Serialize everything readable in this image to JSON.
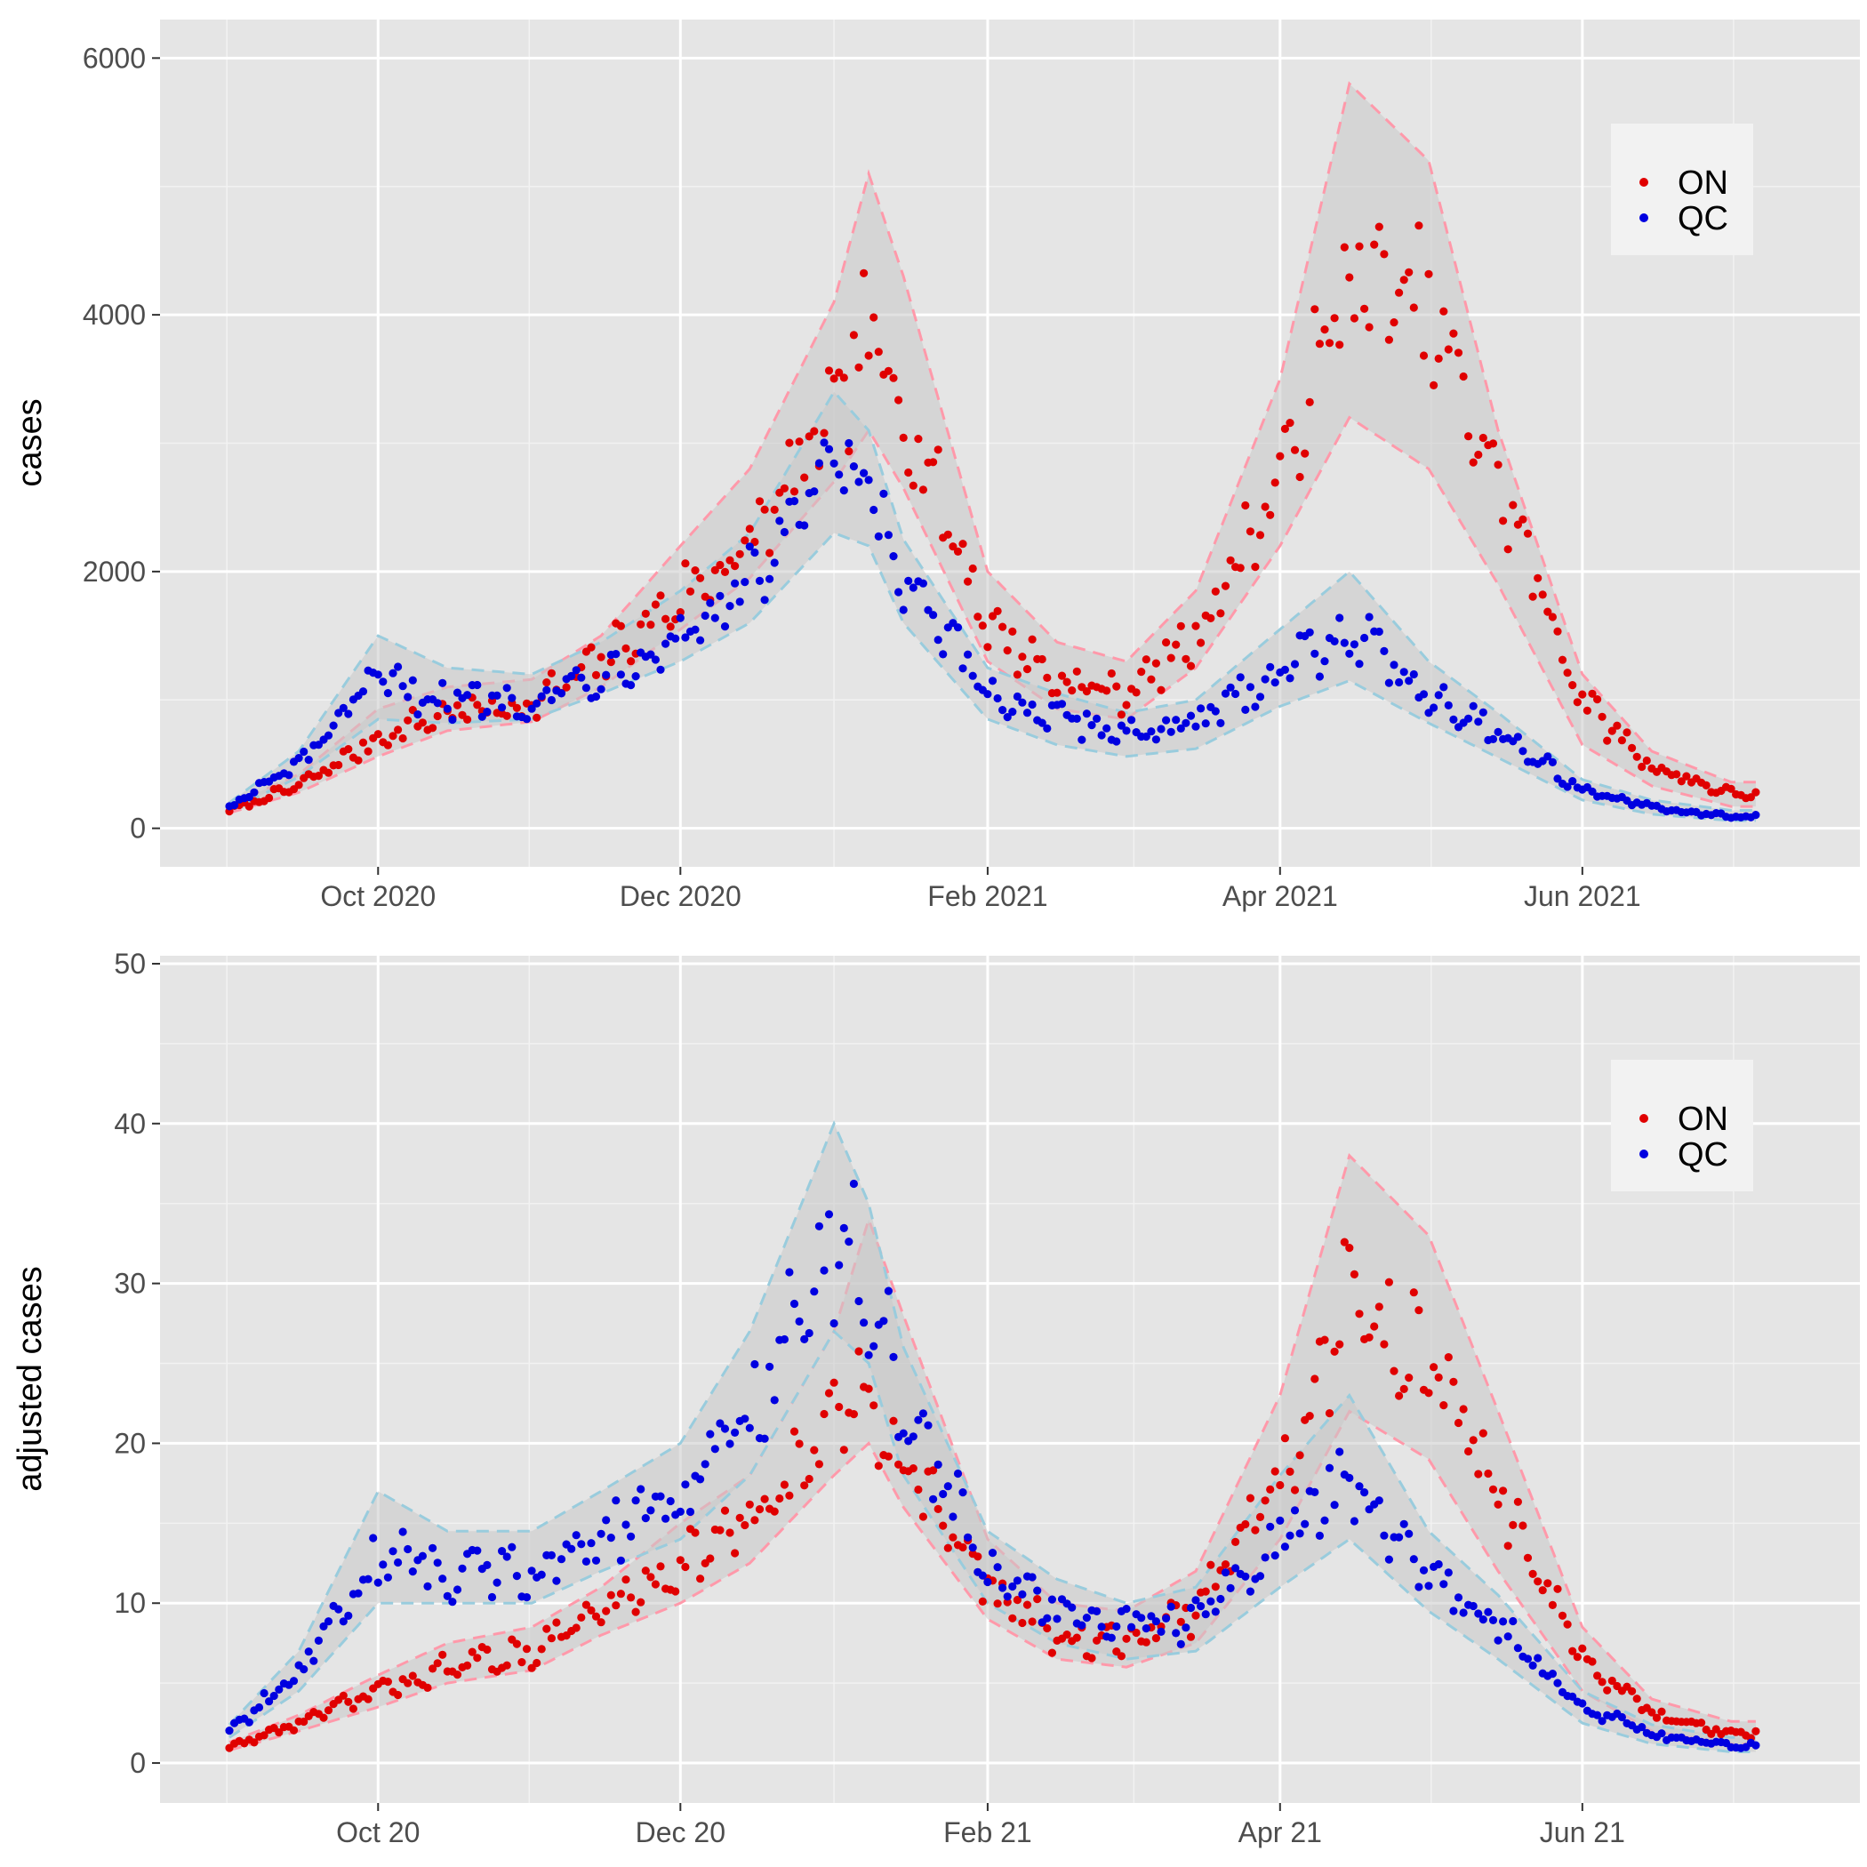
{
  "colors": {
    "ON": "#e00000",
    "QC": "#0000e0",
    "ON_band": "#ff99aa",
    "QC_band": "#99ccdd",
    "band_fill": "#c8c8c8",
    "panel": "#e5e5e5"
  },
  "legend": {
    "position": "top-right",
    "entries": [
      "ON",
      "QC"
    ]
  },
  "chart_data": [
    {
      "type": "scatter",
      "title": "",
      "xlabel": "",
      "ylabel": "cases",
      "x_range": [
        "2020-08-18",
        "2021-07-27"
      ],
      "ylim": [
        -300,
        6300
      ],
      "y_ticks": [
        0,
        2000,
        4000,
        6000
      ],
      "x_ticks": [
        "2020-10-01",
        "2020-12-01",
        "2021-02-01",
        "2021-04-01",
        "2021-06-01"
      ],
      "x_tick_labels": [
        "Oct 2020",
        "Dec 2020",
        "Feb 2021",
        "Apr 2021",
        "Jun 2021"
      ],
      "grid": true,
      "legend": "top-right",
      "series": [
        {
          "name": "ON",
          "x": [
            "2020-09-01",
            "2020-09-15",
            "2020-10-01",
            "2020-10-15",
            "2020-11-01",
            "2020-11-15",
            "2020-12-01",
            "2020-12-15",
            "2021-01-01",
            "2021-01-08",
            "2021-01-15",
            "2021-02-01",
            "2021-02-15",
            "2021-03-01",
            "2021-03-15",
            "2021-04-01",
            "2021-04-15",
            "2021-05-01",
            "2021-05-15",
            "2021-06-01",
            "2021-06-15",
            "2021-07-01"
          ],
          "values": [
            140,
            330,
            700,
            900,
            960,
            1300,
            1800,
            2200,
            3200,
            3800,
            3300,
            1600,
            1150,
            1050,
            1500,
            2700,
            4300,
            4000,
            2700,
            1000,
            480,
            270
          ],
          "band_low": [
            120,
            280,
            560,
            760,
            830,
            1100,
            1550,
            1950,
            2700,
            3100,
            2650,
            1300,
            930,
            850,
            1250,
            2200,
            3200,
            2800,
            1900,
            650,
            330,
            170
          ],
          "band_high": [
            180,
            420,
            930,
            1100,
            1160,
            1500,
            2200,
            2800,
            4100,
            5100,
            4300,
            2000,
            1450,
            1300,
            1850,
            3500,
            5800,
            5200,
            3100,
            1200,
            600,
            360
          ]
        },
        {
          "name": "QC",
          "x": [
            "2020-09-01",
            "2020-09-15",
            "2020-10-01",
            "2020-10-15",
            "2020-11-01",
            "2020-11-15",
            "2020-12-01",
            "2020-12-15",
            "2021-01-01",
            "2021-01-08",
            "2021-01-15",
            "2021-02-01",
            "2021-02-15",
            "2021-03-01",
            "2021-03-15",
            "2021-04-01",
            "2021-04-15",
            "2021-05-01",
            "2021-05-15",
            "2021-06-01",
            "2021-06-15",
            "2021-07-01"
          ],
          "values": [
            170,
            500,
            1150,
            1000,
            1000,
            1200,
            1500,
            1900,
            2800,
            2600,
            1900,
            1050,
            850,
            750,
            800,
            1250,
            1550,
            1050,
            750,
            300,
            160,
            90
          ],
          "band_low": [
            140,
            400,
            850,
            820,
            850,
            1050,
            1300,
            1600,
            2300,
            2200,
            1600,
            850,
            650,
            560,
            620,
            950,
            1150,
            820,
            550,
            220,
            110,
            60
          ],
          "band_high": [
            200,
            600,
            1500,
            1250,
            1200,
            1450,
            1850,
            2300,
            3400,
            3100,
            2250,
            1250,
            1050,
            900,
            1000,
            1550,
            2000,
            1300,
            900,
            380,
            220,
            140
          ]
        }
      ]
    },
    {
      "type": "scatter",
      "title": "",
      "xlabel": "",
      "ylabel": "adjusted cases",
      "x_range": [
        "2020-08-18",
        "2021-07-27"
      ],
      "ylim": [
        -2.5,
        50.5
      ],
      "y_ticks": [
        0,
        10,
        20,
        30,
        40,
        50
      ],
      "x_ticks": [
        "2020-10-01",
        "2020-12-01",
        "2021-02-01",
        "2021-04-01",
        "2021-06-01"
      ],
      "x_tick_labels": [
        "Oct 20",
        "Dec 20",
        "Feb 21",
        "Apr 21",
        "Jun 21"
      ],
      "grid": true,
      "legend": "top-right",
      "series": [
        {
          "name": "ON",
          "x": [
            "2020-09-01",
            "2020-09-15",
            "2020-10-01",
            "2020-10-15",
            "2020-11-01",
            "2020-11-15",
            "2020-12-01",
            "2020-12-15",
            "2021-01-01",
            "2021-01-08",
            "2021-01-15",
            "2021-02-01",
            "2021-02-15",
            "2021-03-01",
            "2021-03-15",
            "2021-04-01",
            "2021-04-15",
            "2021-05-01",
            "2021-05-15",
            "2021-06-01",
            "2021-06-15",
            "2021-07-01"
          ],
          "values": [
            1,
            2.5,
            4.5,
            6,
            7,
            9.5,
            12.5,
            15,
            21,
            23.5,
            19,
            11,
            8,
            7.5,
            9.5,
            18,
            29,
            25,
            17,
            6.5,
            3,
            1.8
          ],
          "band_low": [
            0.8,
            2,
            3.5,
            5,
            5.8,
            8,
            10,
            12.5,
            18,
            20,
            16,
            9,
            6.5,
            6,
            7.5,
            14,
            22,
            19,
            12,
            4.5,
            2,
            1.2
          ],
          "band_high": [
            1.3,
            3,
            5.5,
            7.5,
            8.5,
            11,
            15,
            18,
            27,
            34,
            28,
            14,
            10,
            9.5,
            12,
            23,
            38,
            33,
            22,
            8.5,
            4,
            2.6
          ]
        },
        {
          "name": "QC",
          "x": [
            "2020-09-01",
            "2020-09-15",
            "2020-10-01",
            "2020-10-15",
            "2020-11-01",
            "2020-11-15",
            "2020-12-01",
            "2020-12-15",
            "2021-01-01",
            "2021-01-08",
            "2021-01-15",
            "2021-02-01",
            "2021-02-15",
            "2021-03-01",
            "2021-03-15",
            "2021-04-01",
            "2021-04-15",
            "2021-05-01",
            "2021-05-15",
            "2021-06-01",
            "2021-06-15",
            "2021-07-01"
          ],
          "values": [
            2,
            5.5,
            13,
            12,
            12,
            14,
            16.5,
            22,
            33,
            30,
            22,
            12,
            9.5,
            8.5,
            9,
            14,
            18,
            12,
            8.5,
            3.5,
            1.8,
            1.1
          ],
          "band_low": [
            1.6,
            4.5,
            10,
            10,
            10,
            12,
            14,
            18,
            27,
            25,
            18,
            10,
            7.5,
            6.5,
            7,
            11,
            14,
            9.5,
            6.5,
            2.5,
            1.2,
            0.7
          ],
          "band_high": [
            2.4,
            7,
            17,
            14.5,
            14.5,
            17,
            20,
            27,
            40,
            35,
            26,
            14.5,
            11.5,
            10,
            11,
            18,
            23,
            14.5,
            10.5,
            4.5,
            2.4,
            1.6
          ]
        }
      ]
    }
  ]
}
